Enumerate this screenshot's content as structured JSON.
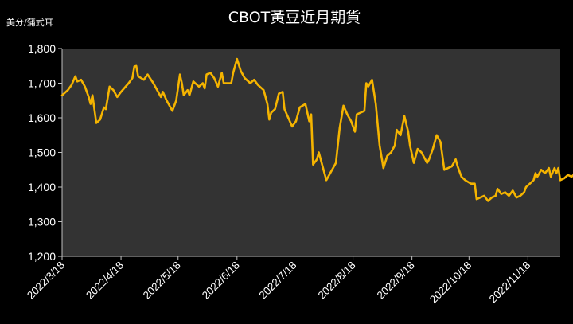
{
  "chart_data": {
    "type": "line",
    "title": "CBOT黃豆近月期貨",
    "unit_label": "美分/蒲式耳",
    "ylim": [
      1200,
      1800
    ],
    "yticks": [
      "1,200",
      "1,300",
      "1,400",
      "1,500",
      "1,600",
      "1,700",
      "1,800"
    ],
    "yvalues": [
      1200,
      1300,
      1400,
      1500,
      1600,
      1700,
      1800
    ],
    "xlabels": [
      "2022/3/18",
      "2022/4/18",
      "2022/5/18",
      "2022/6/18",
      "2022/7/18",
      "2022/8/18",
      "2022/9/18",
      "2022/10/18",
      "2022/11/18"
    ],
    "x_start": "2022-03-18",
    "x_end": "2022-12-05",
    "line_color": "#F5B400",
    "plot_background": "#333333",
    "grid": false,
    "series": [
      {
        "values": [
          [
            "2022-03-18",
            1665
          ],
          [
            "2022-03-21",
            1680
          ],
          [
            "2022-03-23",
            1695
          ],
          [
            "2022-03-25",
            1720
          ],
          [
            "2022-03-26",
            1705
          ],
          [
            "2022-03-28",
            1710
          ],
          [
            "2022-03-30",
            1690
          ],
          [
            "2022-04-01",
            1660
          ],
          [
            "2022-04-02",
            1640
          ],
          [
            "2022-04-03",
            1665
          ],
          [
            "2022-04-05",
            1585
          ],
          [
            "2022-04-07",
            1595
          ],
          [
            "2022-04-09",
            1630
          ],
          [
            "2022-04-10",
            1625
          ],
          [
            "2022-04-12",
            1690
          ],
          [
            "2022-04-14",
            1680
          ],
          [
            "2022-04-16",
            1660
          ],
          [
            "2022-04-18",
            1675
          ],
          [
            "2022-04-22",
            1700
          ],
          [
            "2022-04-24",
            1715
          ],
          [
            "2022-04-25",
            1748
          ],
          [
            "2022-04-26",
            1750
          ],
          [
            "2022-04-27",
            1720
          ],
          [
            "2022-04-30",
            1710
          ],
          [
            "2022-05-02",
            1725
          ],
          [
            "2022-05-05",
            1700
          ],
          [
            "2022-05-07",
            1680
          ],
          [
            "2022-05-09",
            1660
          ],
          [
            "2022-05-10",
            1675
          ],
          [
            "2022-05-12",
            1650
          ],
          [
            "2022-05-15",
            1620
          ],
          [
            "2022-05-17",
            1650
          ],
          [
            "2022-05-19",
            1725
          ],
          [
            "2022-05-20",
            1700
          ],
          [
            "2022-05-21",
            1665
          ],
          [
            "2022-05-23",
            1680
          ],
          [
            "2022-05-24",
            1665
          ],
          [
            "2022-05-26",
            1705
          ],
          [
            "2022-05-29",
            1690
          ],
          [
            "2022-05-31",
            1700
          ],
          [
            "2022-06-01",
            1685
          ],
          [
            "2022-06-02",
            1725
          ],
          [
            "2022-06-04",
            1730
          ],
          [
            "2022-06-06",
            1715
          ],
          [
            "2022-06-08",
            1690
          ],
          [
            "2022-06-10",
            1730
          ],
          [
            "2022-06-11",
            1700
          ],
          [
            "2022-06-15",
            1700
          ],
          [
            "2022-06-16",
            1730
          ],
          [
            "2022-06-18",
            1770
          ],
          [
            "2022-06-20",
            1735
          ],
          [
            "2022-06-22",
            1715
          ],
          [
            "2022-06-25",
            1700
          ],
          [
            "2022-06-27",
            1710
          ],
          [
            "2022-06-29",
            1695
          ],
          [
            "2022-07-02",
            1680
          ],
          [
            "2022-07-04",
            1640
          ],
          [
            "2022-07-05",
            1595
          ],
          [
            "2022-07-06",
            1615
          ],
          [
            "2022-07-08",
            1625
          ],
          [
            "2022-07-10",
            1670
          ],
          [
            "2022-07-12",
            1675
          ],
          [
            "2022-07-13",
            1625
          ],
          [
            "2022-07-15",
            1600
          ],
          [
            "2022-07-17",
            1575
          ],
          [
            "2022-07-19",
            1590
          ],
          [
            "2022-07-21",
            1630
          ],
          [
            "2022-07-24",
            1640
          ],
          [
            "2022-07-26",
            1590
          ],
          [
            "2022-07-27",
            1610
          ],
          [
            "2022-07-28",
            1465
          ],
          [
            "2022-07-30",
            1480
          ],
          [
            "2022-07-31",
            1500
          ],
          [
            "2022-08-02",
            1460
          ],
          [
            "2022-08-04",
            1420
          ],
          [
            "2022-08-06",
            1440
          ],
          [
            "2022-08-09",
            1470
          ],
          [
            "2022-08-11",
            1570
          ],
          [
            "2022-08-13",
            1635
          ],
          [
            "2022-08-15",
            1610
          ],
          [
            "2022-08-17",
            1590
          ],
          [
            "2022-08-19",
            1560
          ],
          [
            "2022-08-20",
            1610
          ],
          [
            "2022-08-22",
            1615
          ],
          [
            "2022-08-24",
            1620
          ],
          [
            "2022-08-25",
            1700
          ],
          [
            "2022-08-26",
            1690
          ],
          [
            "2022-08-28",
            1710
          ],
          [
            "2022-08-30",
            1640
          ],
          [
            "2022-09-01",
            1520
          ],
          [
            "2022-09-03",
            1455
          ],
          [
            "2022-09-05",
            1490
          ],
          [
            "2022-09-07",
            1500
          ],
          [
            "2022-09-09",
            1520
          ],
          [
            "2022-09-10",
            1565
          ],
          [
            "2022-09-12",
            1550
          ],
          [
            "2022-09-14",
            1605
          ],
          [
            "2022-09-16",
            1560
          ],
          [
            "2022-09-17",
            1520
          ],
          [
            "2022-09-19",
            1470
          ],
          [
            "2022-09-21",
            1510
          ],
          [
            "2022-09-23",
            1500
          ],
          [
            "2022-09-26",
            1470
          ],
          [
            "2022-09-27",
            1480
          ],
          [
            "2022-09-29",
            1510
          ],
          [
            "2022-10-01",
            1550
          ],
          [
            "2022-10-03",
            1530
          ],
          [
            "2022-10-05",
            1450
          ],
          [
            "2022-10-07",
            1455
          ],
          [
            "2022-10-09",
            1460
          ],
          [
            "2022-10-11",
            1480
          ],
          [
            "2022-10-12",
            1460
          ],
          [
            "2022-10-14",
            1430
          ],
          [
            "2022-10-16",
            1420
          ],
          [
            "2022-10-19",
            1410
          ],
          [
            "2022-10-21",
            1410
          ],
          [
            "2022-10-22",
            1365
          ],
          [
            "2022-10-24",
            1370
          ],
          [
            "2022-10-26",
            1375
          ],
          [
            "2022-10-28",
            1360
          ],
          [
            "2022-10-30",
            1370
          ],
          [
            "2022-11-01",
            1375
          ],
          [
            "2022-11-02",
            1395
          ],
          [
            "2022-11-04",
            1380
          ],
          [
            "2022-11-06",
            1385
          ],
          [
            "2022-11-08",
            1375
          ],
          [
            "2022-11-10",
            1390
          ],
          [
            "2022-11-12",
            1370
          ],
          [
            "2022-11-14",
            1375
          ],
          [
            "2022-11-16",
            1385
          ],
          [
            "2022-11-17",
            1400
          ],
          [
            "2022-11-19",
            1410
          ],
          [
            "2022-11-21",
            1420
          ],
          [
            "2022-11-22",
            1440
          ],
          [
            "2022-11-23",
            1430
          ],
          [
            "2022-11-25",
            1450
          ],
          [
            "2022-11-27",
            1440
          ],
          [
            "2022-11-29",
            1455
          ],
          [
            "2022-11-30",
            1430
          ],
          [
            "2022-12-02",
            1455
          ],
          [
            "2022-12-03",
            1440
          ],
          [
            "2022-12-04",
            1455
          ],
          [
            "2022-12-05",
            1420
          ],
          [
            "2022-12-07",
            1425
          ],
          [
            "2022-12-09",
            1435
          ],
          [
            "2022-12-11",
            1430
          ],
          [
            "2022-12-13",
            1440
          ],
          [
            "2022-12-15",
            1445
          ],
          [
            "2022-12-17",
            1460
          ],
          [
            "2022-12-18",
            1465
          ],
          [
            "2022-12-19",
            1430
          ],
          [
            "2022-12-20",
            1445
          ]
        ]
      }
    ]
  }
}
